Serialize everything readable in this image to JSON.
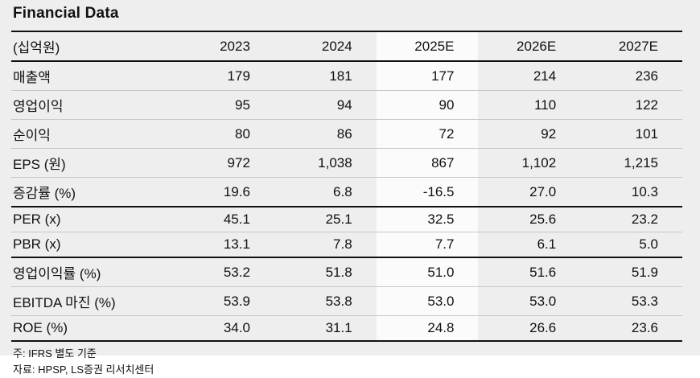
{
  "title": "Financial Data",
  "table": {
    "unit_label": "(십억원)",
    "columns": [
      "2023",
      "2024",
      "2025E",
      "2026E",
      "2027E"
    ],
    "highlighted_column": "2025E",
    "rows": [
      {
        "label": "매출액",
        "values": [
          "179",
          "181",
          "177",
          "214",
          "236"
        ]
      },
      {
        "label": "영업이익",
        "values": [
          "95",
          "94",
          "90",
          "110",
          "122"
        ]
      },
      {
        "label": "순이익",
        "values": [
          "80",
          "86",
          "72",
          "92",
          "101"
        ]
      },
      {
        "label": "EPS (원)",
        "values": [
          "972",
          "1,038",
          "867",
          "1,102",
          "1,215"
        ]
      },
      {
        "label": "증감률 (%)",
        "values": [
          "19.6",
          "6.8",
          "-16.5",
          "27.0",
          "10.3"
        ]
      },
      {
        "label": "PER (x)",
        "values": [
          "45.1",
          "25.1",
          "32.5",
          "25.6",
          "23.2"
        ]
      },
      {
        "label": "PBR (x)",
        "values": [
          "13.1",
          "7.8",
          "7.7",
          "6.1",
          "5.0"
        ]
      },
      {
        "label": "영업이익률 (%)",
        "values": [
          "53.2",
          "51.8",
          "51.0",
          "51.6",
          "51.9"
        ]
      },
      {
        "label": "EBITDA 마진 (%)",
        "values": [
          "53.9",
          "53.8",
          "53.0",
          "53.0",
          "53.3"
        ]
      },
      {
        "label": "ROE (%)",
        "values": [
          "34.0",
          "31.1",
          "24.8",
          "26.6",
          "23.6"
        ]
      }
    ]
  },
  "footnotes": [
    "주: IFRS 별도 기준",
    "자료: HPSP, LS증권 리서치센터"
  ],
  "colors": {
    "page_bg": "#eeeeee",
    "highlight_bg": "#fbfbfb",
    "line_strong": "#111111",
    "line_light": "#c8c8c8",
    "text": "#111111"
  }
}
